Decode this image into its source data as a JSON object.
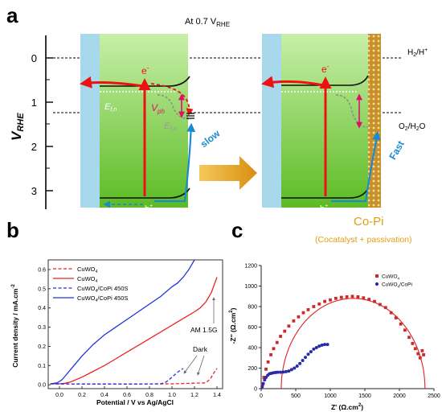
{
  "panel_a": {
    "label": "a",
    "condition_prefix": "At 0.7 V",
    "condition_sub": "RHE",
    "y_axis": {
      "name": "V",
      "sub": "RHE",
      "ticks": [
        "0",
        "1",
        "2",
        "3"
      ]
    },
    "levels": {
      "h2_pre": "H",
      "h2_sub": "2",
      "h2_post": "/H",
      "h2_sup": "+",
      "o2_pre": "O",
      "o2_sub": "2",
      "o2_post": "/H",
      "o2_sub2": "2",
      "o2_end": "O"
    },
    "left": {
      "electron": "e",
      "electron_sup": "-",
      "hole": "h",
      "hole_sup": "+",
      "efn": "E",
      "efn_sub": "f,n",
      "efp": "E",
      "efp_sub": "f,p",
      "vph": "V",
      "vph_sub": "ph",
      "rate": "slow"
    },
    "right": {
      "electron": "e",
      "electron_sup": "-",
      "hole": "h",
      "hole_sup": "+",
      "rate": "Fast",
      "cocatalyst": "Co-Pi",
      "cocatalyst_note": "(Cocatalyst + passivation)"
    },
    "colors": {
      "electrolyte": "#a8d8ec",
      "semiconductor_top": "#c8efa8",
      "semiconductor_bottom": "#5cbb24",
      "copi": "#c8902a",
      "electron": "#ee1111",
      "hole": "#1c8ad1",
      "arrow": "#e0a010",
      "vph": "#e0106a"
    }
  },
  "panel_b": {
    "label": "b",
    "xlabel": "Potential / V vs Ag/AgCl",
    "ylabel": "Current density / mA.cm",
    "ylabel_sup": "-2",
    "annotations": {
      "light": "AM 1.5G",
      "dark": "Dark"
    }
  },
  "panel_c": {
    "label": "c",
    "xlabel_pre": "Z' (Ω.cm",
    "xlabel_sup": "2",
    "xlabel_post": ")",
    "ylabel_pre": "-Z'' (Ω.cm",
    "ylabel_sup": "2",
    "ylabel_post": ")"
  },
  "chart_data": [
    {
      "type": "line",
      "xlim": [
        -0.1,
        1.45
      ],
      "ylim": [
        -0.02,
        0.65
      ],
      "xticks": [
        "0.0",
        "0.2",
        "0.4",
        "0.6",
        "0.8",
        "1.0",
        "1.2",
        "1.4"
      ],
      "yticks": [
        "0.0",
        "0.1",
        "0.2",
        "0.3",
        "0.4",
        "0.5",
        "0.6"
      ],
      "legend_position": "top-left",
      "series": [
        {
          "name": "CuWO4",
          "sub": "4",
          "color": "#ee2222",
          "style": "dashed",
          "x": [
            -0.08,
            0.2,
            0.6,
            1.0,
            1.3,
            1.34,
            1.37,
            1.4
          ],
          "y": [
            0.005,
            0.004,
            0.004,
            0.005,
            0.01,
            0.03,
            0.06,
            0.085
          ]
        },
        {
          "name": "CuWO4",
          "sub": "4",
          "color": "#ee2222",
          "style": "solid",
          "x": [
            -0.08,
            0.0,
            0.05,
            0.1,
            0.2,
            0.3,
            0.4,
            0.5,
            0.6,
            0.7,
            0.8,
            0.9,
            1.0,
            1.1,
            1.2,
            1.25,
            1.3,
            1.35,
            1.4
          ],
          "y": [
            0.005,
            0.005,
            0.008,
            0.015,
            0.04,
            0.07,
            0.1,
            0.135,
            0.17,
            0.205,
            0.24,
            0.275,
            0.31,
            0.345,
            0.38,
            0.4,
            0.43,
            0.48,
            0.56
          ]
        },
        {
          "name": "CuWO4/CoPi 450S",
          "sub": "4",
          "color": "#2233dd",
          "style": "dashed",
          "x": [
            -0.08,
            0.3,
            0.7,
            0.9,
            0.94,
            0.97,
            1.0,
            1.03,
            1.06,
            1.1
          ],
          "y": [
            0.005,
            0.004,
            0.004,
            0.005,
            0.012,
            0.025,
            0.04,
            0.055,
            0.07,
            0.085
          ]
        },
        {
          "name": "CuWO4/CoPi 450S",
          "sub": "4",
          "color": "#2233dd",
          "style": "solid",
          "x": [
            -0.08,
            -0.02,
            0.02,
            0.05,
            0.1,
            0.15,
            0.2,
            0.3,
            0.4,
            0.5,
            0.6,
            0.7,
            0.8,
            0.9,
            1.0,
            1.05,
            1.1,
            1.15,
            1.2
          ],
          "y": [
            0.005,
            0.01,
            0.025,
            0.045,
            0.08,
            0.115,
            0.15,
            0.21,
            0.26,
            0.3,
            0.34,
            0.38,
            0.42,
            0.46,
            0.51,
            0.53,
            0.56,
            0.6,
            0.65
          ]
        }
      ]
    },
    {
      "type": "scatter",
      "xlim": [
        0,
        2500
      ],
      "ylim": [
        0,
        1200
      ],
      "xticks": [
        "0",
        "500",
        "1000",
        "1500",
        "2000",
        "2500"
      ],
      "yticks": [
        "0",
        "200",
        "400",
        "600",
        "800",
        "1000",
        "1200"
      ],
      "legend_position": "top-right",
      "series": [
        {
          "name": "CuWO4",
          "sub": "4",
          "color": "#cc2a2a",
          "marker": "square",
          "x": [
            20,
            40,
            70,
            100,
            140,
            180,
            230,
            280,
            340,
            400,
            470,
            540,
            610,
            680,
            760,
            840,
            920,
            1000,
            1080,
            1160,
            1240,
            1320,
            1400,
            1480,
            1560,
            1640,
            1720,
            1800,
            1880,
            1950,
            2020,
            2080,
            2140,
            2190,
            2230,
            2270,
            2300,
            2330,
            2350
          ],
          "y": [
            40,
            110,
            190,
            260,
            330,
            390,
            450,
            510,
            560,
            610,
            660,
            700,
            740,
            770,
            800,
            825,
            850,
            865,
            880,
            890,
            895,
            900,
            895,
            885,
            870,
            850,
            820,
            790,
            740,
            690,
            630,
            570,
            500,
            440,
            390,
            340,
            300,
            370,
            330
          ]
        },
        {
          "name": "CuWO4/CoPi",
          "sub": "4",
          "color": "#2a2aaa",
          "marker": "circle",
          "x": [
            15,
            30,
            50,
            70,
            95,
            120,
            150,
            180,
            210,
            240,
            280,
            320,
            360,
            400,
            440,
            480,
            520,
            560,
            600,
            640,
            680,
            720,
            760,
            800,
            840,
            880,
            920,
            960
          ],
          "y": [
            20,
            50,
            85,
            110,
            130,
            145,
            150,
            155,
            158,
            160,
            160,
            162,
            166,
            172,
            185,
            200,
            220,
            245,
            275,
            305,
            335,
            360,
            385,
            400,
            415,
            425,
            430,
            430
          ]
        }
      ],
      "fit": {
        "color": "#dd2222",
        "center_x": 1330,
        "radius_x": 1040,
        "radius_y": 880
      }
    }
  ]
}
